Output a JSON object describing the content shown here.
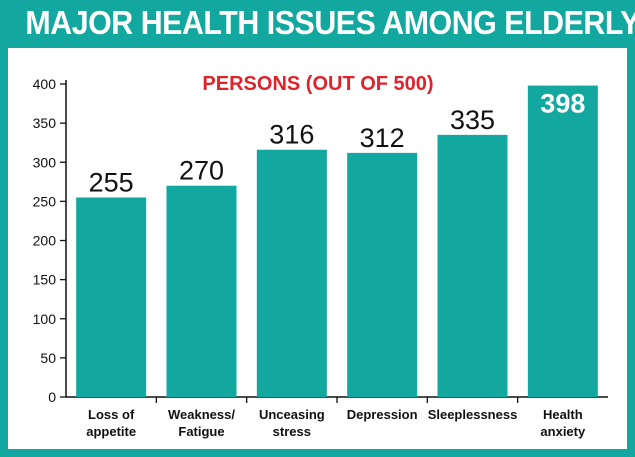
{
  "chart_data": {
    "type": "bar",
    "title": "MAJOR HEALTH ISSUES AMONG ELDERLY",
    "subtitle": "PERSONS (OUT OF 500)",
    "categories": [
      [
        "Loss of",
        "appetite"
      ],
      [
        "Weakness/",
        "Fatigue"
      ],
      [
        "Unceasing",
        "stress"
      ],
      [
        "Depression"
      ],
      [
        "Sleeplessness"
      ],
      [
        "Health",
        "anxiety"
      ]
    ],
    "values": [
      255,
      270,
      316,
      312,
      335,
      398
    ],
    "value_labels": [
      "255",
      "270",
      "316",
      "312",
      "335",
      "398"
    ],
    "yticks": [
      "0",
      "50",
      "100",
      "150",
      "200",
      "250",
      "300",
      "350",
      "400"
    ],
    "ylim": [
      0,
      400
    ],
    "grid": false,
    "bar_color": "#12a8a0",
    "subtitle_color": "#e0232b",
    "frame_color": "#12a8a0"
  }
}
